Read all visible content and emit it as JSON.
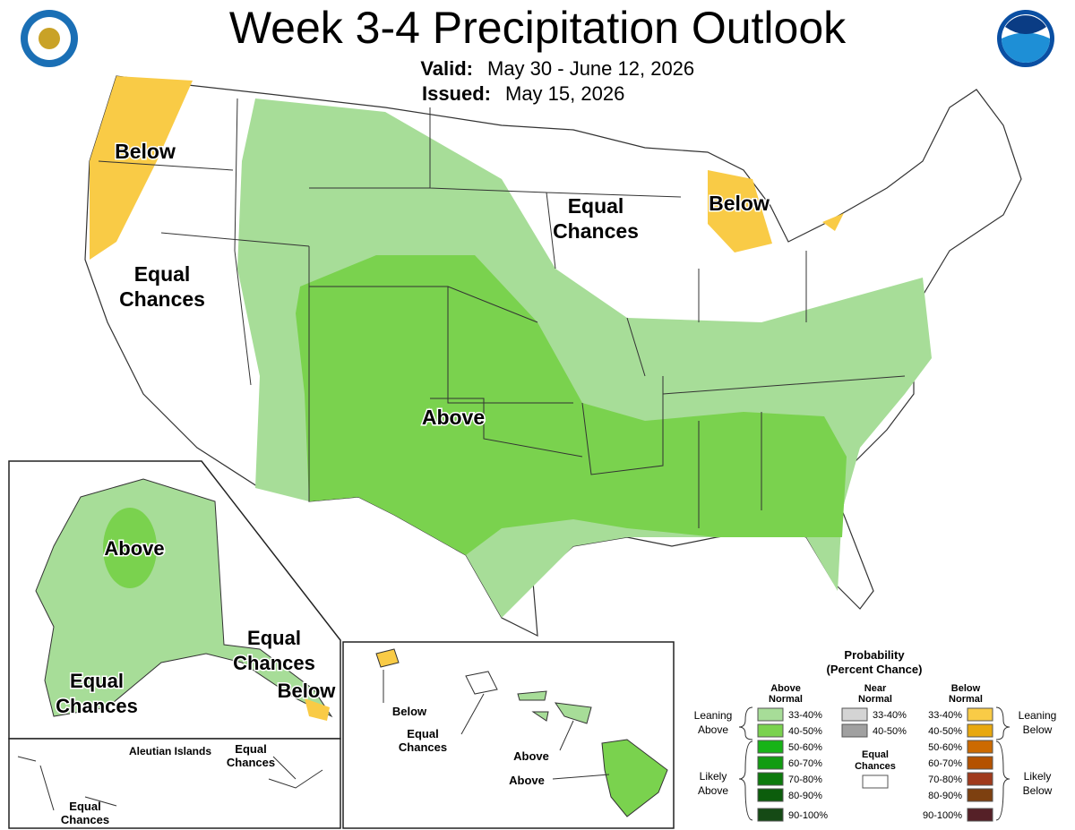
{
  "header": {
    "title": "Week 3-4 Precipitation Outlook",
    "valid_label": "Valid:",
    "valid": "May 30 - June 12, 2026",
    "issued_label": "Issued:",
    "issued": "May 15, 2026"
  },
  "conus": {
    "labels": [
      [
        "Below"
      ],
      [
        "Equal",
        "Chances"
      ],
      [
        "Equal",
        "Chances"
      ],
      [
        "Below"
      ],
      [
        "Above"
      ]
    ]
  },
  "alaska": {
    "labels": [
      [
        "Above"
      ],
      [
        "Equal",
        "Chances"
      ],
      [
        "Equal",
        "Chances"
      ],
      [
        "Below"
      ]
    ]
  },
  "aleutians": {
    "title": "Aleutian Islands",
    "labels": [
      [
        "Equal",
        "Chances"
      ],
      [
        "Equal",
        "Chances"
      ]
    ]
  },
  "hawaii": {
    "labels": [
      [
        "Below"
      ],
      [
        "Equal",
        "Chances"
      ],
      [
        "Above"
      ],
      [
        "Above"
      ]
    ]
  },
  "legend": {
    "title": [
      "Probability",
      "(Percent Chance)"
    ],
    "above": {
      "heading": [
        "Above",
        "Normal"
      ],
      "items": [
        "33-40%",
        "40-50%",
        "50-60%",
        "60-70%",
        "70-80%",
        "80-90%",
        "90-100%"
      ]
    },
    "near": {
      "heading": [
        "Near",
        "Normal"
      ],
      "items": [
        "33-40%",
        "40-50%"
      ]
    },
    "below": {
      "heading": [
        "Below",
        "Normal"
      ],
      "items": [
        "33-40%",
        "40-50%",
        "50-60%",
        "60-70%",
        "70-80%",
        "80-90%",
        "90-100%"
      ]
    },
    "equal": [
      "Equal",
      "Chances"
    ],
    "leaning_above": [
      "Leaning",
      "Above"
    ],
    "likely_above": [
      "Likely",
      "Above"
    ],
    "leaning_below": [
      "Leaning",
      "Below"
    ],
    "likely_below": [
      "Likely",
      "Below"
    ]
  }
}
